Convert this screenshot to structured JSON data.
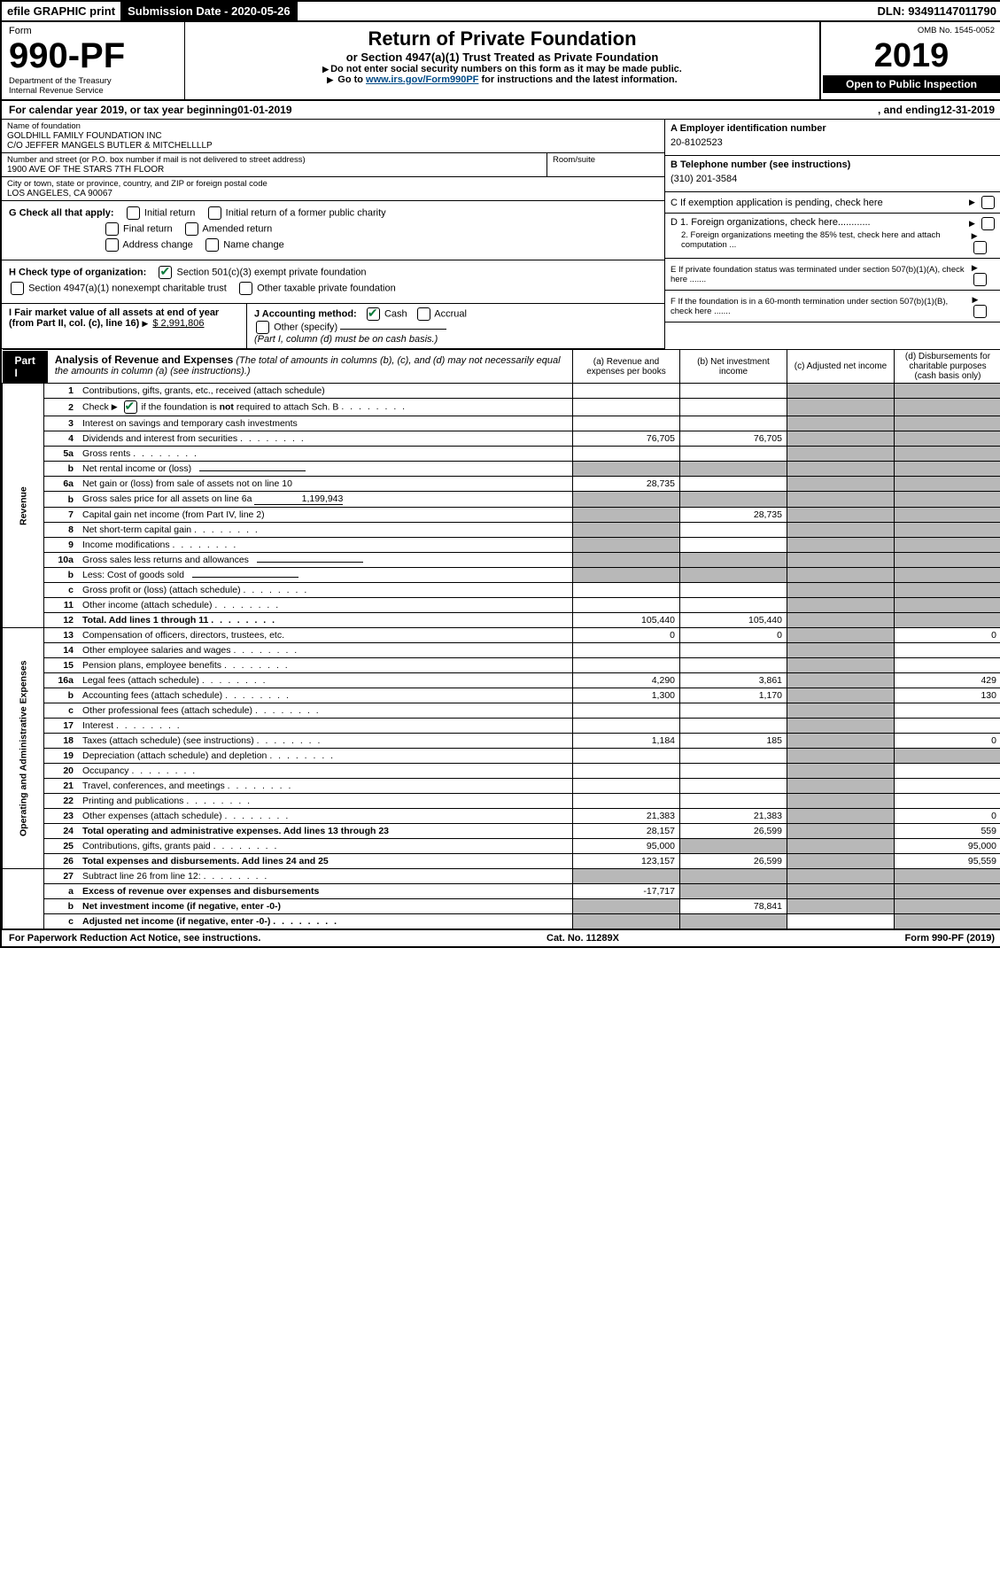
{
  "topbar": {
    "efile": "efile GRAPHIC print",
    "sub_label": "Submission Date - 2020-05-26",
    "dln": "DLN: 93491147011790"
  },
  "header": {
    "form_word": "Form",
    "form_num": "990-PF",
    "dept": "Department of the Treasury",
    "irs": "Internal Revenue Service",
    "title": "Return of Private Foundation",
    "subtitle": "or Section 4947(a)(1) Trust Treated as Private Foundation",
    "inst1": "Do not enter social security numbers on this form as it may be made public.",
    "inst2_pre": "Go to ",
    "inst2_link": "www.irs.gov/Form990PF",
    "inst2_post": " for instructions and the latest information.",
    "omb": "OMB No. 1545-0052",
    "year": "2019",
    "open": "Open to Public Inspection"
  },
  "cal": {
    "pre": "For calendar year 2019, or tax year beginning ",
    "begin": "01-01-2019",
    "mid": ", and ending ",
    "end": "12-31-2019"
  },
  "entity": {
    "name_lbl": "Name of foundation",
    "name1": "GOLDHILL FAMILY FOUNDATION INC",
    "name2": "C/O JEFFER MANGELS BUTLER & MITCHELLLLP",
    "addr_lbl": "Number and street (or P.O. box number if mail is not delivered to street address)",
    "addr": "1900 AVE OF THE STARS 7TH FLOOR",
    "room_lbl": "Room/suite",
    "city_lbl": "City or town, state or province, country, and ZIP or foreign postal code",
    "city": "LOS ANGELES, CA  90067"
  },
  "right": {
    "a_lbl": "A Employer identification number",
    "a_val": "20-8102523",
    "b_lbl": "B Telephone number (see instructions)",
    "b_val": "(310) 201-3584",
    "c_lbl": "C If exemption application is pending, check here",
    "d1": "D 1. Foreign organizations, check here............",
    "d2": "2. Foreign organizations meeting the 85% test, check here and attach computation ...",
    "e": "E  If private foundation status was terminated under section 507(b)(1)(A), check here .......",
    "f": "F  If the foundation is in a 60-month termination under section 507(b)(1)(B), check here ......."
  },
  "g": {
    "lbl": "G Check all that apply:",
    "opts": [
      "Initial return",
      "Initial return of a former public charity",
      "Final return",
      "Amended return",
      "Address change",
      "Name change"
    ]
  },
  "h": {
    "lbl": "H Check type of organization:",
    "o1": "Section 501(c)(3) exempt private foundation",
    "o2": "Section 4947(a)(1) nonexempt charitable trust",
    "o3": "Other taxable private foundation"
  },
  "i": {
    "lbl": "I Fair market value of all assets at end of year (from Part II, col. (c), line 16)",
    "val": "$  2,991,806"
  },
  "j": {
    "lbl": "J Accounting method:",
    "cash": "Cash",
    "accrual": "Accrual",
    "other": "Other (specify)",
    "note": "(Part I, column (d) must be on cash basis.)"
  },
  "part1": {
    "tab": "Part I",
    "title": "Analysis of Revenue and Expenses",
    "note": "(The total of amounts in columns (b), (c), and (d) may not necessarily equal the amounts in column (a) (see instructions).)",
    "col_a": "(a)   Revenue and expenses per books",
    "col_b": "(b)  Net investment income",
    "col_c": "(c)  Adjusted net income",
    "col_d": "(d)  Disbursements for charitable purposes (cash basis only)"
  },
  "sides": {
    "rev": "Revenue",
    "exp": "Operating and Administrative Expenses"
  },
  "rows": [
    {
      "n": "1",
      "d": "Contributions, gifts, grants, etc., received (attach schedule)"
    },
    {
      "n": "2",
      "d": "Check ▶ ☑ if the foundation is not required to attach Sch. B",
      "check": true
    },
    {
      "n": "3",
      "d": "Interest on savings and temporary cash investments"
    },
    {
      "n": "4",
      "d": "Dividends and interest from securities",
      "a": "76,705",
      "b": "76,705"
    },
    {
      "n": "5a",
      "d": "Gross rents"
    },
    {
      "n": "b",
      "d": "Net rental income or (loss)",
      "blank": true
    },
    {
      "n": "6a",
      "d": "Net gain or (loss) from sale of assets not on line 10",
      "a": "28,735"
    },
    {
      "n": "b",
      "d": "Gross sales price for all assets on line 6a",
      "inline": "1,199,943"
    },
    {
      "n": "7",
      "d": "Capital gain net income (from Part IV, line 2)",
      "b": "28,735"
    },
    {
      "n": "8",
      "d": "Net short-term capital gain"
    },
    {
      "n": "9",
      "d": "Income modifications"
    },
    {
      "n": "10a",
      "d": "Gross sales less returns and allowances",
      "blank": true
    },
    {
      "n": "b",
      "d": "Less: Cost of goods sold",
      "blank": true
    },
    {
      "n": "c",
      "d": "Gross profit or (loss) (attach schedule)"
    },
    {
      "n": "11",
      "d": "Other income (attach schedule)"
    },
    {
      "n": "12",
      "d": "Total. Add lines 1 through 11",
      "bold": true,
      "a": "105,440",
      "b": "105,440"
    },
    {
      "n": "13",
      "d": "Compensation of officers, directors, trustees, etc.",
      "a": "0",
      "b": "0",
      "dd": "0"
    },
    {
      "n": "14",
      "d": "Other employee salaries and wages"
    },
    {
      "n": "15",
      "d": "Pension plans, employee benefits"
    },
    {
      "n": "16a",
      "d": "Legal fees (attach schedule)",
      "a": "4,290",
      "b": "3,861",
      "dd": "429"
    },
    {
      "n": "b",
      "d": "Accounting fees (attach schedule)",
      "a": "1,300",
      "b": "1,170",
      "dd": "130"
    },
    {
      "n": "c",
      "d": "Other professional fees (attach schedule)"
    },
    {
      "n": "17",
      "d": "Interest"
    },
    {
      "n": "18",
      "d": "Taxes (attach schedule) (see instructions)",
      "a": "1,184",
      "b": "185",
      "dd": "0"
    },
    {
      "n": "19",
      "d": "Depreciation (attach schedule) and depletion"
    },
    {
      "n": "20",
      "d": "Occupancy"
    },
    {
      "n": "21",
      "d": "Travel, conferences, and meetings"
    },
    {
      "n": "22",
      "d": "Printing and publications"
    },
    {
      "n": "23",
      "d": "Other expenses (attach schedule)",
      "a": "21,383",
      "b": "21,383",
      "dd": "0"
    },
    {
      "n": "24",
      "d": "Total operating and administrative expenses. Add lines 13 through 23",
      "bold": true,
      "a": "28,157",
      "b": "26,599",
      "dd": "559"
    },
    {
      "n": "25",
      "d": "Contributions, gifts, grants paid",
      "a": "95,000",
      "dd": "95,000"
    },
    {
      "n": "26",
      "d": "Total expenses and disbursements. Add lines 24 and 25",
      "bold": true,
      "a": "123,157",
      "b": "26,599",
      "dd": "95,559"
    },
    {
      "n": "27",
      "d": "Subtract line 26 from line 12:"
    },
    {
      "n": "a",
      "d": "Excess of revenue over expenses and disbursements",
      "bold": true,
      "a": "-17,717"
    },
    {
      "n": "b",
      "d": "Net investment income (if negative, enter -0-)",
      "bold": true,
      "b": "78,841"
    },
    {
      "n": "c",
      "d": "Adjusted net income (if negative, enter -0-)",
      "bold": true
    }
  ],
  "footer": {
    "left": "For Paperwork Reduction Act Notice, see instructions.",
    "mid": "Cat. No. 11289X",
    "right": "Form 990-PF (2019)"
  },
  "shading": {
    "row_b": [
      "6a",
      "10a",
      "b_10",
      "c_10"
    ],
    "col_c_shade_revenue": true
  }
}
